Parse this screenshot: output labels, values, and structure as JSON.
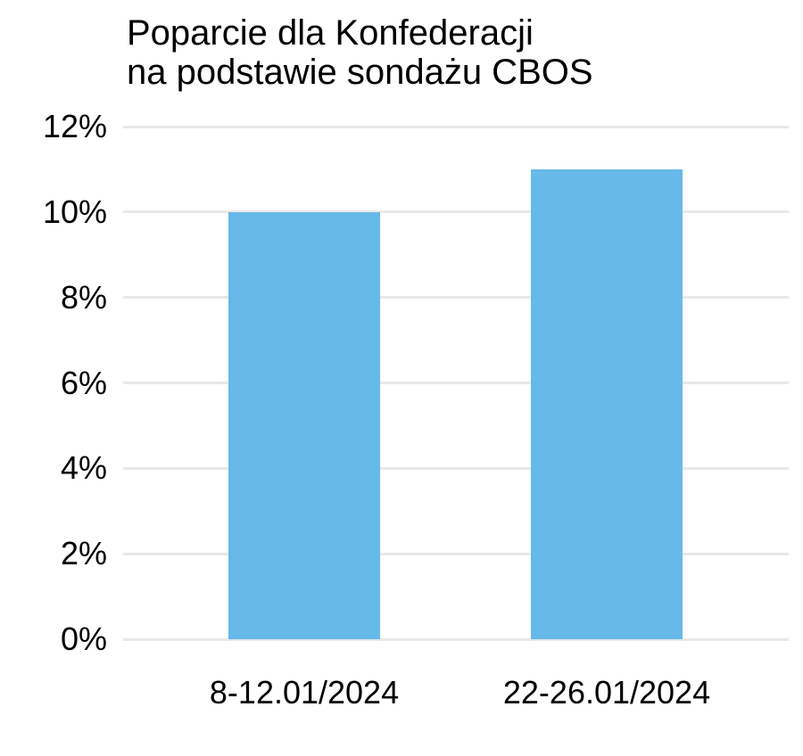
{
  "chart_data": {
    "type": "bar",
    "title": "Poparcie dla Konfederacji na podstawie sondażu CBOS",
    "title_lines": [
      "Poparcie dla Konfederacji",
      "na podstawie sondażu CBOS"
    ],
    "categories": [
      "8-12.01/2024",
      "22-26.01/2024"
    ],
    "values": [
      10,
      11
    ],
    "value_unit": "%",
    "xlabel": "",
    "ylabel": "",
    "ylim": [
      0,
      12
    ],
    "ytick_step": 2,
    "ytick_labels": [
      "0%",
      "2%",
      "4%",
      "6%",
      "8%",
      "10%",
      "12%"
    ],
    "grid": true,
    "legend": false,
    "colors": {
      "bar": "#66B9E8",
      "gridline": "#E8E8E8",
      "text": "#000000",
      "background": "#FFFFFF"
    }
  }
}
